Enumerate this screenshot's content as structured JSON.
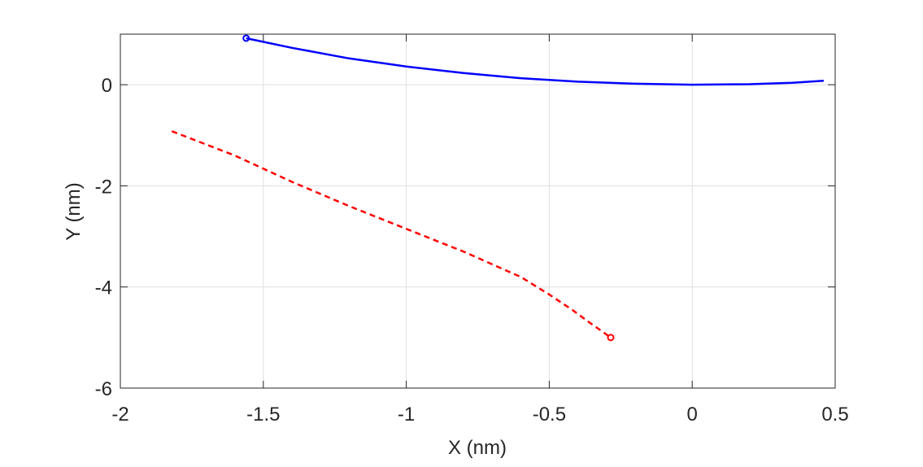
{
  "chart_data": {
    "type": "line",
    "title": "",
    "xlabel": "X (nm)",
    "ylabel": "Y (nm)",
    "xlim": [
      -2,
      0.5
    ],
    "ylim": [
      -6,
      1
    ],
    "xticks": [
      -2,
      -1.5,
      -1,
      -0.5,
      0,
      0.5
    ],
    "xtick_labels": [
      "-2",
      "-1.5",
      "-1",
      "-0.5",
      "0",
      "0.5"
    ],
    "yticks": [
      -6,
      -4,
      -2,
      0
    ],
    "ytick_labels": [
      "-6",
      "-4",
      "-2",
      "0"
    ],
    "grid": true,
    "legend": false,
    "series": [
      {
        "color": "#0000ff",
        "style": "solid",
        "marker_start": true,
        "x": [
          -1.56,
          -1.4,
          -1.2,
          -1.0,
          -0.8,
          -0.6,
          -0.4,
          -0.2,
          0.0,
          0.2,
          0.35,
          0.46
        ],
        "y": [
          0.92,
          0.73,
          0.52,
          0.36,
          0.23,
          0.13,
          0.06,
          0.02,
          0.0,
          0.01,
          0.04,
          0.08
        ]
      },
      {
        "color": "#ff0000",
        "style": "dashed",
        "marker_end": true,
        "x": [
          -1.82,
          -1.6,
          -1.4,
          -1.2,
          -1.0,
          -0.8,
          -0.6,
          -0.5,
          -0.42,
          -0.36,
          -0.31,
          -0.285
        ],
        "y": [
          -0.92,
          -1.4,
          -1.92,
          -2.4,
          -2.85,
          -3.3,
          -3.8,
          -4.15,
          -4.45,
          -4.7,
          -4.9,
          -5.0
        ]
      }
    ]
  }
}
